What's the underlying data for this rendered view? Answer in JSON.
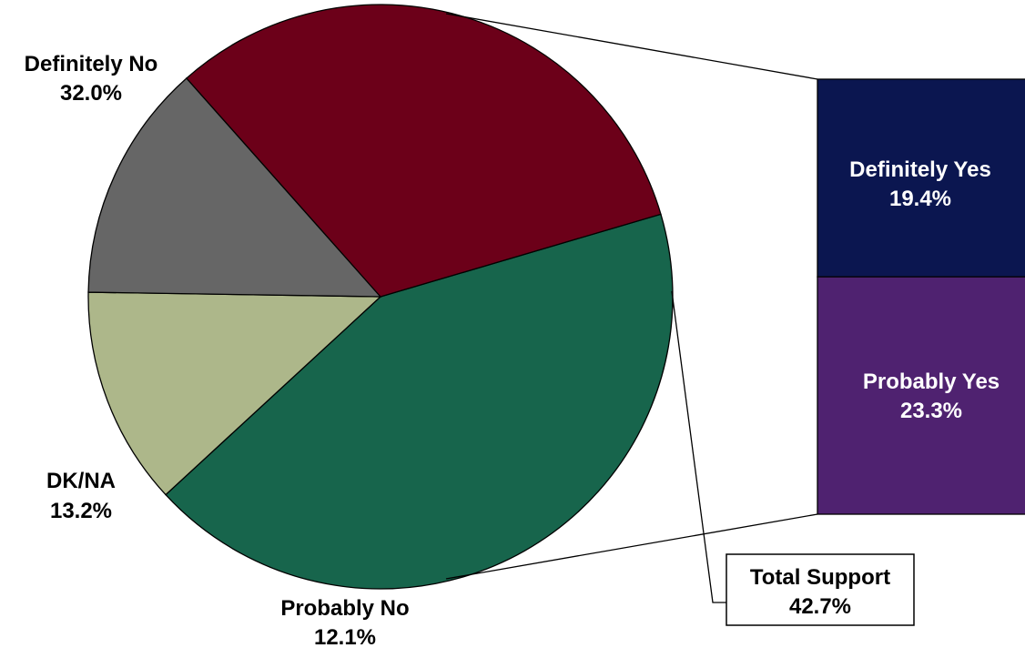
{
  "chart_data": {
    "type": "pie",
    "slices": [
      {
        "label": "Total Support",
        "value": 42.7,
        "color": "#17654c"
      },
      {
        "label": "Probably No",
        "value": 12.1,
        "color": "#adb78a"
      },
      {
        "label": "DK/NA",
        "value": 13.2,
        "color": "#666666"
      },
      {
        "label": "Definitely No",
        "value": 32.0,
        "color": "#6c0019"
      }
    ],
    "slice_labels": {
      "definitely_no": {
        "name": "Definitely No",
        "pct": "32.0%"
      },
      "dk_na": {
        "name": "DK/NA",
        "pct": "13.2%"
      },
      "probably_no": {
        "name": "Probably No",
        "pct": "12.1%"
      },
      "total_support": {
        "name": "Total Support",
        "pct": "42.7%"
      }
    },
    "breakdown": {
      "type": "stacked-bar",
      "of": "Total Support",
      "segments": [
        {
          "label": "Definitely Yes",
          "value": 19.4,
          "pct": "19.4%",
          "color": "#0b1650"
        },
        {
          "label": "Probably Yes",
          "value": 23.3,
          "pct": "23.3%",
          "color": "#4f2270"
        }
      ]
    }
  }
}
